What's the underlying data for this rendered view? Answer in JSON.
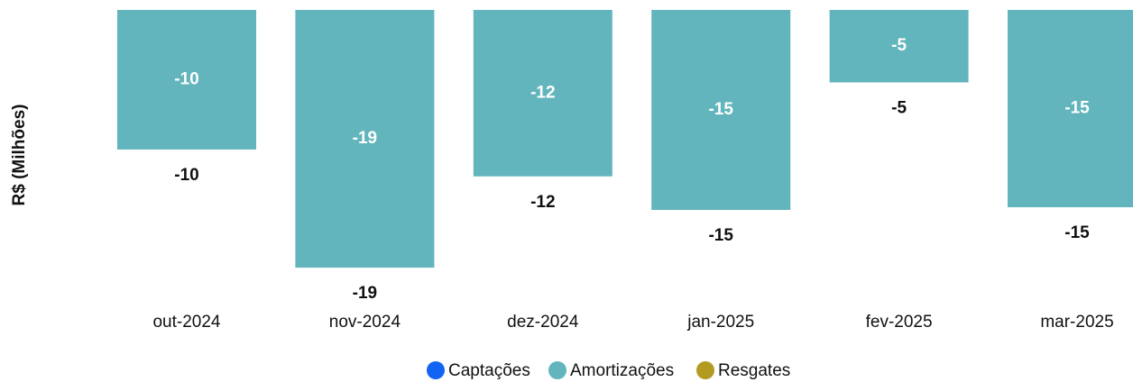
{
  "chart_data": {
    "type": "bar",
    "stacked": true,
    "y_label": "R$ (Milhões)",
    "categories": [
      "out-2024",
      "nov-2024",
      "dez-2024",
      "jan-2025",
      "fev-2025",
      "mar-2025"
    ],
    "series": [
      {
        "name": "Captações",
        "color": "#1464f4",
        "values": [
          0,
          0,
          0,
          0,
          0,
          0
        ]
      },
      {
        "name": "Amortizações",
        "color": "#62b5bc",
        "values": [
          -10.4,
          -19.2,
          -12.4,
          -14.9,
          -5.4,
          -14.7
        ],
        "value_labels": [
          "-10",
          "-19",
          "-12",
          "-15",
          "-5",
          "-15"
        ]
      },
      {
        "name": "Resgates",
        "color": "#b39b22",
        "values": [
          0,
          0,
          0,
          0,
          0,
          0
        ]
      }
    ],
    "ylim": [
      -20,
      0
    ],
    "legend": "bottom"
  }
}
